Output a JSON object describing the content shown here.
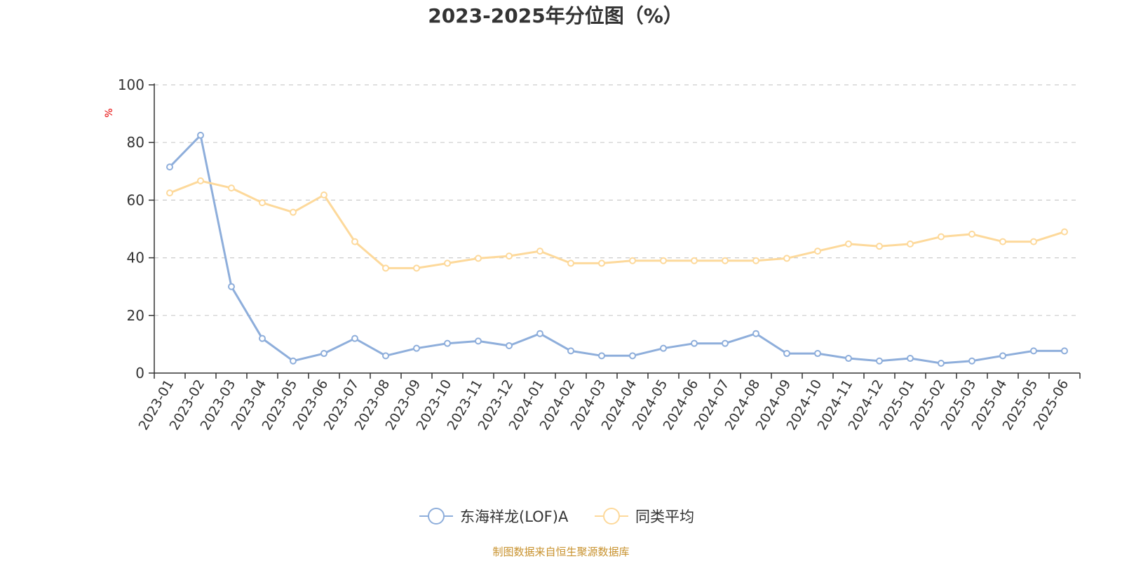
{
  "chart_data": {
    "type": "line",
    "title": "2023-2025年分位图（%）",
    "ylabel": "%",
    "ylim": [
      0,
      100
    ],
    "yticks": [
      "0",
      "20",
      "40",
      "60",
      "80",
      "100"
    ],
    "grid": true,
    "legend_position": "bottom",
    "categories": [
      "2023-01",
      "2023-02",
      "2023-03",
      "2023-04",
      "2023-05",
      "2023-06",
      "2023-07",
      "2023-08",
      "2023-09",
      "2023-10",
      "2023-11",
      "2023-12",
      "2024-01",
      "2024-02",
      "2024-03",
      "2024-04",
      "2024-05",
      "2024-06",
      "2024-07",
      "2024-08",
      "2024-09",
      "2024-10",
      "2024-11",
      "2024-12",
      "2025-01",
      "2025-02",
      "2025-03",
      "2025-04",
      "2025-05",
      "2025-06"
    ],
    "series": [
      {
        "name": "东海祥龙(LOF)A",
        "color": "#8eaedb",
        "values": [
          71.5,
          82.5,
          30.0,
          12.0,
          4.2,
          6.8,
          12.0,
          6.0,
          8.6,
          10.3,
          11.1,
          9.5,
          13.7,
          7.7,
          6.0,
          6.0,
          8.6,
          10.3,
          10.3,
          13.7,
          6.8,
          6.8,
          5.1,
          4.2,
          5.1,
          3.4,
          4.2,
          6.0,
          7.7,
          7.7
        ]
      },
      {
        "name": "同类平均",
        "color": "#fdd99b",
        "values": [
          62.5,
          66.7,
          64.2,
          59.1,
          55.8,
          61.8,
          45.6,
          36.4,
          36.4,
          38.1,
          39.8,
          40.6,
          42.3,
          38.1,
          38.1,
          39.0,
          39.0,
          39.0,
          39.0,
          39.0,
          39.8,
          42.3,
          44.8,
          44.0,
          44.8,
          47.3,
          48.2,
          45.6,
          45.6,
          49.0
        ]
      }
    ]
  },
  "source_note": "制图数据来自恒生聚源数据库"
}
